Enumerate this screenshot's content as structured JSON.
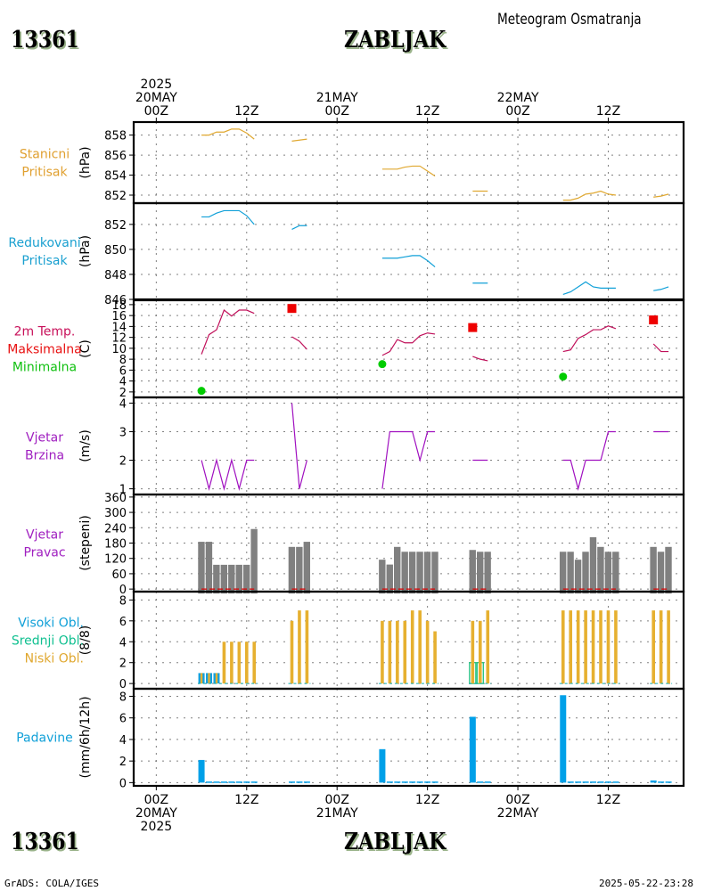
{
  "header": {
    "station_id": "13361",
    "station_name": "ZABLJAK",
    "subtitle": "Meteogram Osmatranja"
  },
  "footer": {
    "station_id": "13361",
    "station_name": "ZABLJAK",
    "credit": "GrADS: COLA/IGES",
    "timestamp": "2025-05-22-23:28"
  },
  "chart_data": {
    "type": "line",
    "title": "Meteogram Osmatranja - ZABLJAK (13361)",
    "x_axis": {
      "unit": "hours since 2025-05-20 00Z",
      "range": [
        -3,
        70
      ],
      "ticks": [
        {
          "hour": 0,
          "top": [
            "2025",
            "20MAY",
            "00Z"
          ],
          "bottom": [
            "00Z",
            "20MAY",
            "2025"
          ]
        },
        {
          "hour": 12,
          "top": [
            "12Z"
          ],
          "bottom": [
            "12Z"
          ]
        },
        {
          "hour": 24,
          "top": [
            "21MAY",
            "00Z"
          ],
          "bottom": [
            "00Z",
            "21MAY"
          ]
        },
        {
          "hour": 36,
          "top": [
            "12Z"
          ],
          "bottom": [
            "12Z"
          ]
        },
        {
          "hour": 48,
          "top": [
            "22MAY",
            "00Z"
          ],
          "bottom": [
            "00Z",
            "22MAY"
          ]
        },
        {
          "hour": 60,
          "top": [
            "12Z"
          ],
          "bottom": [
            "12Z"
          ]
        }
      ],
      "minor_grid_hours": [
        0,
        12,
        24,
        36,
        48,
        60
      ]
    },
    "segments_hours": [
      [
        6,
        7,
        8,
        9,
        10,
        11,
        12,
        13
      ],
      [
        18,
        19,
        20
      ],
      [
        30,
        31,
        32,
        33,
        34,
        35,
        36,
        37
      ],
      [
        42,
        43,
        44
      ],
      [
        54,
        55,
        56,
        57,
        58,
        59,
        60,
        61
      ],
      [
        66,
        67,
        68
      ]
    ],
    "panels": [
      {
        "id": "station-pressure",
        "type": "line",
        "label": [
          "Stanicni",
          "Pritisak"
        ],
        "label_color": "#e0a030",
        "ylabel": "(hPa)",
        "ylim": [
          851.2,
          859.3
        ],
        "yticks": [
          852,
          854,
          856,
          858
        ],
        "series": [
          {
            "name": "Stanicni Pritisak",
            "color": "#e0a830",
            "values": [
              [
                858.0,
                858.0,
                858.3,
                858.3,
                858.6,
                858.6,
                858.2,
                857.6
              ],
              [
                857.4,
                857.5,
                857.6
              ],
              [
                854.6,
                854.6,
                854.6,
                854.8,
                854.9,
                854.9,
                854.4,
                853.9
              ],
              [
                852.4,
                852.4,
                852.4
              ],
              [
                851.5,
                851.5,
                851.7,
                852.1,
                852.2,
                852.4,
                852.1,
                852.0
              ],
              [
                851.8,
                851.9,
                852.1
              ]
            ]
          }
        ]
      },
      {
        "id": "reduced-pressure",
        "type": "line",
        "label": [
          "Redukovani",
          "Pritisak"
        ],
        "label_color": "#1aa0d0",
        "ylabel": "(hPa)",
        "ylim": [
          846,
          853.7
        ],
        "yticks": [
          846,
          848,
          850,
          852
        ],
        "series": [
          {
            "name": "Redukovani Pritisak",
            "color": "#10a0d8",
            "values": [
              [
                852.6,
                852.6,
                852.9,
                853.1,
                853.1,
                853.1,
                852.7,
                852.0
              ],
              [
                851.6,
                851.9,
                851.9
              ],
              [
                849.3,
                849.3,
                849.3,
                849.4,
                849.5,
                849.5,
                849.1,
                848.6
              ],
              [
                847.3,
                847.3,
                847.3
              ],
              [
                846.4,
                846.6,
                847.0,
                847.4,
                847.0,
                846.9,
                846.9,
                846.9
              ],
              [
                846.7,
                846.8,
                847.0
              ]
            ]
          }
        ]
      },
      {
        "id": "temperature",
        "type": "line",
        "label": [
          "2m Temp.",
          "Maksimalna",
          "Minimalna"
        ],
        "label_colors": [
          "#c8105a",
          "#e81010",
          "#10c010"
        ],
        "ylabel": "(C)",
        "ylim": [
          1,
          18.8
        ],
        "yticks": [
          2,
          4,
          6,
          8,
          10,
          12,
          14,
          16,
          18
        ],
        "series": [
          {
            "name": "2m Temp.",
            "color": "#c0105a",
            "values": [
              [
                8.9,
                12.5,
                13.4,
                17.0,
                15.9,
                17.0,
                17.0,
                16.4
              ],
              [
                12.1,
                11.3,
                9.8
              ],
              [
                8.7,
                9.4,
                11.6,
                11.0,
                11.0,
                12.3,
                12.8,
                12.6
              ],
              [
                8.5,
                8.0,
                7.7
              ],
              [
                9.4,
                9.7,
                11.8,
                12.5,
                13.4,
                13.4,
                14.1,
                13.6
              ],
              [
                10.8,
                9.4,
                9.4
              ]
            ]
          },
          {
            "name": "Maksimalna",
            "color": "#ee0000",
            "marker": "square",
            "points": [
              [
                18,
                17.3
              ],
              [
                42,
                13.8
              ],
              [
                66,
                15.2
              ]
            ]
          },
          {
            "name": "Minimalna",
            "color": "#00cc00",
            "marker": "circle",
            "points": [
              [
                6,
                2.2
              ],
              [
                30,
                7.1
              ],
              [
                54,
                4.8
              ]
            ]
          }
        ]
      },
      {
        "id": "wind-speed",
        "type": "line",
        "label": [
          "Vjetar",
          "Brzina"
        ],
        "label_color": "#a020c0",
        "ylabel": "(m/s)",
        "ylim": [
          0.8,
          4.2
        ],
        "yticks": [
          1,
          2,
          3,
          4
        ],
        "series": [
          {
            "name": "Vjetar Brzina",
            "color": "#a010c0",
            "values": [
              [
                2,
                1,
                2,
                1,
                2,
                1,
                2,
                2
              ],
              [
                4,
                1,
                2
              ],
              [
                1,
                3,
                3,
                3,
                3,
                2,
                3,
                3
              ],
              [
                2,
                2,
                2
              ],
              [
                2,
                2,
                1,
                2,
                2,
                2,
                3,
                3
              ],
              [
                3,
                3,
                3
              ]
            ]
          }
        ]
      },
      {
        "id": "wind-direction",
        "type": "bar",
        "label": [
          "Vjetar",
          "Pravac"
        ],
        "label_color": "#a020c0",
        "ylabel": "(stepeni)",
        "ylim": [
          -10,
          370
        ],
        "yticks": [
          0,
          60,
          120,
          180,
          240,
          300,
          360
        ],
        "series": [
          {
            "name": "Pravac",
            "color": "#808080",
            "values": [
              [
                185,
                185,
                95,
                95,
                95,
                95,
                95,
                235
              ],
              [
                165,
                165,
                185
              ],
              [
                115,
                96,
                165,
                146,
                146,
                146,
                146,
                146
              ],
              [
                153,
                146,
                146
              ],
              [
                146,
                146,
                115,
                146,
                203,
                165,
                146,
                146
              ],
              [
                165,
                146,
                165
              ]
            ]
          },
          {
            "name": "baseline",
            "color": "#dd0000",
            "style": "dashed",
            "value": 0
          }
        ]
      },
      {
        "id": "cloud-cover",
        "type": "bar",
        "label": [
          "Visoki Obl.",
          "Srednji Obl.",
          "Niski Obl."
        ],
        "label_colors": [
          "#10a0d8",
          "#10c090",
          "#e0a830"
        ],
        "ylabel": "(8/8)",
        "ylim": [
          -0.5,
          8.8
        ],
        "yticks": [
          0,
          2,
          4,
          6,
          8
        ],
        "series": [
          {
            "name": "Visoki Obl.",
            "color": "#10a0e0",
            "values": [
              [
                1,
                1,
                1,
                0,
                0,
                0,
                0,
                0
              ],
              [
                0,
                0,
                0
              ],
              [
                0,
                0,
                0,
                0,
                0,
                0,
                0,
                0
              ],
              [
                0,
                0,
                0
              ],
              [
                0,
                0,
                0,
                0,
                0,
                0,
                0,
                0
              ],
              [
                0,
                0,
                0
              ]
            ]
          },
          {
            "name": "Srednji Obl.",
            "color": "#20c080",
            "values": [
              [
                0,
                0,
                0,
                0,
                0,
                0,
                0,
                0
              ],
              [
                0,
                0,
                0
              ],
              [
                0,
                0,
                0,
                0,
                0,
                0,
                0,
                0
              ],
              [
                2,
                2,
                0
              ],
              [
                0,
                0,
                0,
                0,
                0,
                0,
                0,
                0
              ],
              [
                0,
                0,
                0
              ]
            ]
          },
          {
            "name": "Niski Obl.",
            "color": "#e6b030",
            "values": [
              [
                1,
                1,
                1,
                4,
                4,
                4,
                4,
                4
              ],
              [
                6,
                7,
                7
              ],
              [
                6,
                6,
                6,
                6,
                7,
                7,
                6,
                5
              ],
              [
                6,
                6,
                7
              ],
              [
                7,
                7,
                7,
                7,
                7,
                7,
                7,
                7
              ],
              [
                7,
                7,
                7
              ]
            ]
          }
        ]
      },
      {
        "id": "precipitation",
        "type": "bar",
        "label": [
          "Padavine"
        ],
        "label_color": "#10a0d8",
        "ylabel": "(mm/6h/12h)",
        "ylim": [
          -0.3,
          8.7
        ],
        "yticks": [
          0,
          2,
          4,
          6,
          8
        ],
        "series": [
          {
            "name": "Padavine",
            "color": "#00a0e8",
            "values": [
              [
                2.1,
                0.1,
                0.1,
                0.1,
                0.1,
                0.1,
                0.1,
                0.1
              ],
              [
                0.1,
                0.1,
                0.1
              ],
              [
                3.1,
                0.1,
                0.1,
                0.1,
                0.1,
                0.1,
                0.1,
                0.1
              ],
              [
                6.1,
                0.1,
                0.1
              ],
              [
                8.1,
                0.1,
                0.1,
                0.1,
                0.1,
                0.1,
                0.1,
                0.1
              ],
              [
                0.2,
                0.1,
                0.1
              ]
            ]
          }
        ]
      }
    ]
  }
}
